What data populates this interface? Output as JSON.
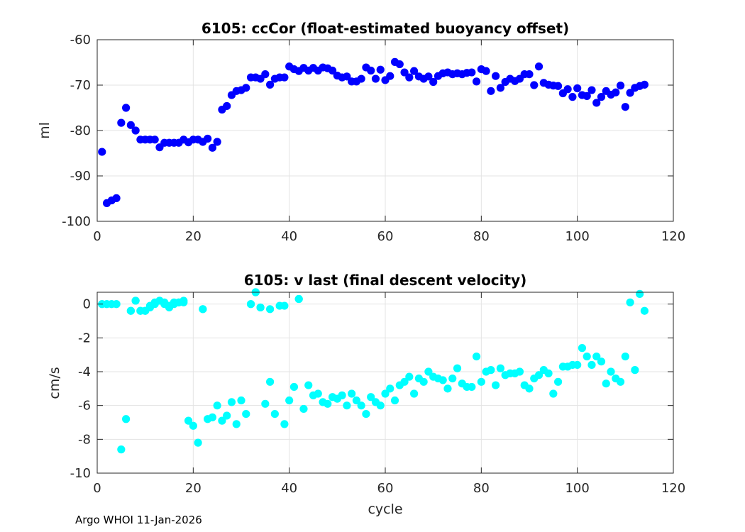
{
  "chart_data": [
    {
      "type": "scatter",
      "title": "6105: ccCor (float-estimated buoyancy offset)",
      "xlabel": "",
      "ylabel": "ml",
      "xlim": [
        0,
        120
      ],
      "ylim": [
        -100,
        -60
      ],
      "xticks": [
        0,
        20,
        40,
        60,
        80,
        100,
        120
      ],
      "yticks": [
        -100,
        -90,
        -80,
        -70,
        -60
      ],
      "grid": true,
      "color": "#0000ff",
      "series": [
        {
          "name": "ccCor",
          "x": [
            1,
            2,
            3,
            4,
            5,
            6,
            7,
            8,
            9,
            10,
            11,
            12,
            13,
            14,
            15,
            16,
            17,
            18,
            19,
            20,
            21,
            22,
            23,
            24,
            25,
            26,
            27,
            28,
            29,
            30,
            31,
            32,
            33,
            34,
            35,
            36,
            37,
            38,
            39,
            40,
            41,
            42,
            43,
            44,
            45,
            46,
            47,
            48,
            49,
            50,
            51,
            52,
            53,
            54,
            55,
            56,
            57,
            58,
            59,
            60,
            61,
            62,
            63,
            64,
            65,
            66,
            67,
            68,
            69,
            70,
            71,
            72,
            73,
            74,
            75,
            76,
            77,
            78,
            79,
            80,
            81,
            82,
            83,
            84,
            85,
            86,
            87,
            88,
            89,
            90,
            91,
            92,
            93,
            94,
            95,
            96,
            97,
            98,
            99,
            100,
            101,
            102,
            103,
            104,
            105,
            106,
            107,
            108,
            109,
            110,
            111,
            112,
            113,
            114
          ],
          "y": [
            -84.7,
            -96,
            -95.4,
            -94.9,
            -78.3,
            -75,
            -78.8,
            -80,
            -82,
            -82,
            -82,
            -82,
            -83.7,
            -82.7,
            -82.7,
            -82.7,
            -82.7,
            -82,
            -82.6,
            -82,
            -82,
            -82.5,
            -81.8,
            -83.8,
            -82.5,
            -75.4,
            -74.6,
            -72.2,
            -71.3,
            -71.1,
            -70.6,
            -68.3,
            -68.3,
            -68.6,
            -67.6,
            -69.9,
            -68.6,
            -68.3,
            -68.3,
            -65.9,
            -66.5,
            -66.9,
            -66.2,
            -66.8,
            -66.2,
            -66.8,
            -66.1,
            -66.3,
            -66.8,
            -67.9,
            -68.3,
            -68.1,
            -69.2,
            -69.2,
            -68.6,
            -66.1,
            -66.8,
            -68.6,
            -66.6,
            -68.9,
            -68,
            -64.9,
            -65.4,
            -67.2,
            -68.3,
            -66.9,
            -68.1,
            -68.6,
            -68.1,
            -69.3,
            -68,
            -67.4,
            -67.2,
            -67.6,
            -67.4,
            -67.6,
            -67.3,
            -67.2,
            -69.2,
            -66.5,
            -66.9,
            -71.3,
            -68,
            -70.6,
            -69.3,
            -68.6,
            -69.1,
            -68.6,
            -67.6,
            -67.6,
            -70,
            -65.9,
            -69.5,
            -69.9,
            -70.1,
            -70.2,
            -71.8,
            -70.9,
            -72.6,
            -70.7,
            -72.2,
            -72.4,
            -71.1,
            -73.9,
            -72.6,
            -71.3,
            -72.1,
            -71.6,
            -70.1,
            -74.8,
            -71.7,
            -70.6,
            -70.2,
            -69.9
          ]
        }
      ]
    },
    {
      "type": "scatter",
      "title": "6105: v last (final descent velocity)",
      "xlabel": "cycle",
      "ylabel": "cm/s",
      "xlim": [
        0,
        120
      ],
      "ylim": [
        -10,
        0.7
      ],
      "xticks": [
        0,
        20,
        40,
        60,
        80,
        100,
        120
      ],
      "yticks": [
        -10,
        -8,
        -6,
        -4,
        -2,
        0
      ],
      "grid": true,
      "color": "#00ffff",
      "series": [
        {
          "name": "v last",
          "x": [
            1,
            2,
            3,
            4,
            5,
            6,
            7,
            8,
            9,
            10,
            11,
            12,
            13,
            14,
            15,
            16,
            17,
            18,
            19,
            20,
            21,
            22,
            23,
            24,
            25,
            26,
            27,
            28,
            29,
            30,
            31,
            32,
            33,
            34,
            35,
            36,
            37,
            38,
            39,
            40,
            41,
            42,
            43,
            44,
            45,
            46,
            47,
            48,
            49,
            50,
            51,
            52,
            53,
            54,
            55,
            56,
            57,
            58,
            59,
            60,
            61,
            62,
            63,
            64,
            65,
            66,
            67,
            68,
            69,
            70,
            71,
            72,
            73,
            74,
            75,
            76,
            77,
            78,
            79,
            80,
            81,
            82,
            83,
            84,
            85,
            86,
            87,
            88,
            89,
            90,
            91,
            92,
            93,
            94,
            95,
            96,
            97,
            98,
            99,
            100,
            101,
            102,
            103,
            104,
            105,
            106,
            107,
            108,
            109,
            110,
            111,
            112,
            113,
            114,
            1,
            2,
            3,
            4,
            7,
            8,
            9,
            10,
            11,
            12,
            13,
            14,
            15,
            16,
            17,
            18,
            22,
            32,
            33,
            34,
            36,
            39,
            42
          ],
          "y": [
            0,
            0,
            0,
            0,
            -8.6,
            -6.8,
            -0.4,
            0.2,
            -0.4,
            -0.4,
            -0.2,
            0,
            0.2,
            0.1,
            -0.1,
            0.1,
            0.1,
            0.2,
            -6.9,
            -7.2,
            -8.2,
            -0.3,
            -6.8,
            -6.7,
            -6,
            -6.9,
            -6.6,
            -5.8,
            -7.1,
            -5.7,
            -6.5,
            0,
            0.7,
            -0.2,
            -5.9,
            -4.6,
            -6.5,
            -0.1,
            -7.1,
            -5.7,
            -4.9,
            0.3,
            -6.2,
            -4.8,
            -5.4,
            -5.3,
            -5.8,
            -5.9,
            -5.5,
            -5.6,
            -5.4,
            -6,
            -5.3,
            -5.7,
            -6,
            -6.5,
            -5.5,
            -5.8,
            -6,
            -5.3,
            -5,
            -5.7,
            -4.8,
            -4.6,
            -4.3,
            -5.3,
            -4.4,
            -4.6,
            -4,
            -4.3,
            -4.4,
            -4.5,
            -5,
            -4.4,
            -3.8,
            -4.7,
            -4.9,
            -4.9,
            -3.1,
            -4.6,
            -4,
            -3.9,
            -4.8,
            -3.8,
            -4.2,
            -4.1,
            -4.1,
            -4,
            -4.8,
            -5,
            -4.4,
            -4.2,
            -3.9,
            -4.1,
            -5.3,
            -4.6,
            -3.7,
            -3.7,
            -3.6,
            -3.6,
            -2.6,
            -3.1,
            -3.6,
            -3.1,
            -3.4,
            -4.7,
            -4,
            -4.4,
            -4.6,
            -3.1,
            0.1,
            -3.9,
            0.6,
            -0.4,
            0,
            0,
            0,
            0,
            -0.4,
            0.2,
            -0.4,
            -0.4,
            -0.1,
            0.1,
            0.2,
            0,
            -0.2,
            0,
            0.1,
            0.1,
            -0.3,
            0,
            0.7,
            -0.2,
            -0.3,
            -0.1,
            0.3
          ]
        }
      ]
    }
  ],
  "footer": "Argo WHOI 11-Jan-2026"
}
